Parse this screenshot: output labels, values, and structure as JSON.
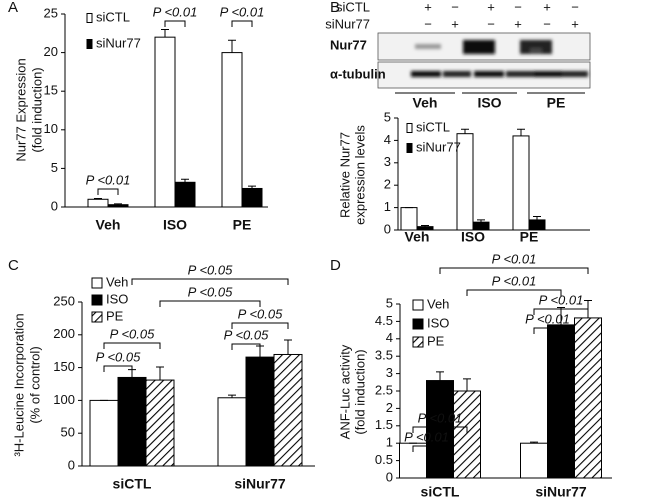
{
  "chart_data": [
    {
      "type": "bar",
      "panel": "A",
      "ylabel": [
        "Nur77 Expression",
        "(fold induction)"
      ],
      "categories": [
        "Veh",
        "ISO",
        "PE"
      ],
      "series": [
        {
          "name": "siCTL",
          "color": "#ffffff",
          "values": [
            1,
            22,
            20
          ],
          "errors": [
            0.1,
            1,
            1.6
          ]
        },
        {
          "name": "siNur77",
          "color": "#000000",
          "values": [
            0.3,
            3.2,
            2.4
          ],
          "errors": [
            0.1,
            0.4,
            0.3
          ]
        }
      ],
      "ylim": [
        0,
        25
      ],
      "yticks": [
        0,
        5,
        10,
        15,
        20,
        25
      ],
      "annotations": [
        "P <0.01",
        "P <0.01",
        "P <0.01"
      ]
    },
    {
      "type": "bar",
      "panel": "B",
      "ylabel": [
        "Relative Nur77",
        "expression levels"
      ],
      "blot": {
        "rows": [
          {
            "label": "siCTL",
            "signs": [
              "+",
              "−",
              "+",
              "−",
              "+",
              "−"
            ]
          },
          {
            "label": "siNur77",
            "signs": [
              "−",
              "+",
              "−",
              "+",
              "−",
              "+"
            ]
          }
        ],
        "bands": [
          "Nur77",
          "α-tubulin"
        ],
        "groups": [
          "Veh",
          "ISO",
          "PE"
        ]
      },
      "categories": [
        "Veh",
        "ISO",
        "PE"
      ],
      "series": [
        {
          "name": "siCTL",
          "color": "#ffffff",
          "values": [
            1,
            4.3,
            4.2
          ],
          "errors": [
            0,
            0.2,
            0.3
          ]
        },
        {
          "name": "siNur77",
          "color": "#000000",
          "values": [
            0.15,
            0.35,
            0.45
          ],
          "errors": [
            0.05,
            0.1,
            0.15
          ]
        }
      ],
      "ylim": [
        0,
        5
      ],
      "yticks": [
        0,
        1,
        2,
        3,
        4,
        5
      ]
    },
    {
      "type": "bar",
      "panel": "C",
      "ylabel": [
        "³H-Leucine Incorporation",
        "(% of control)"
      ],
      "categories": [
        "siCTL",
        "siNur77"
      ],
      "series": [
        {
          "name": "Veh",
          "color": "#ffffff",
          "values": [
            100,
            104
          ],
          "errors": [
            0,
            4
          ]
        },
        {
          "name": "ISO",
          "color": "#000000",
          "values": [
            135,
            166
          ],
          "errors": [
            12,
            17
          ]
        },
        {
          "name": "PE",
          "color": "#ffffff",
          "hatch": true,
          "values": [
            131,
            170
          ],
          "errors": [
            20,
            22
          ]
        }
      ],
      "ylim": [
        0,
        250
      ],
      "yticks": [
        0,
        50,
        100,
        150,
        200,
        250
      ],
      "annotations": [
        "P <0.05",
        "P <0.05",
        "P <0.05",
        "P <0.05",
        "P <0.05",
        "P <0.05"
      ]
    },
    {
      "type": "bar",
      "panel": "D",
      "ylabel": [
        "ANF-Luc activity",
        "(fold induction)"
      ],
      "categories": [
        "siCTL",
        "siNur77"
      ],
      "series": [
        {
          "name": "Veh",
          "color": "#ffffff",
          "values": [
            1,
            1
          ],
          "errors": [
            0,
            0.03
          ]
        },
        {
          "name": "ISO",
          "color": "#000000",
          "values": [
            2.8,
            4.4
          ],
          "errors": [
            0.25,
            0.5
          ]
        },
        {
          "name": "PE",
          "color": "#ffffff",
          "hatch": true,
          "values": [
            2.5,
            4.6
          ],
          "errors": [
            0.35,
            0.5
          ]
        }
      ],
      "ylim": [
        0,
        5
      ],
      "yticks": [
        0,
        0.5,
        1,
        1.5,
        2,
        2.5,
        3,
        3.5,
        4,
        4.5,
        5
      ],
      "annotations": [
        "P <0.01",
        "P <0.01",
        "P <0.01",
        "P <0.01",
        "P <0.01",
        "P <0.01"
      ]
    }
  ]
}
